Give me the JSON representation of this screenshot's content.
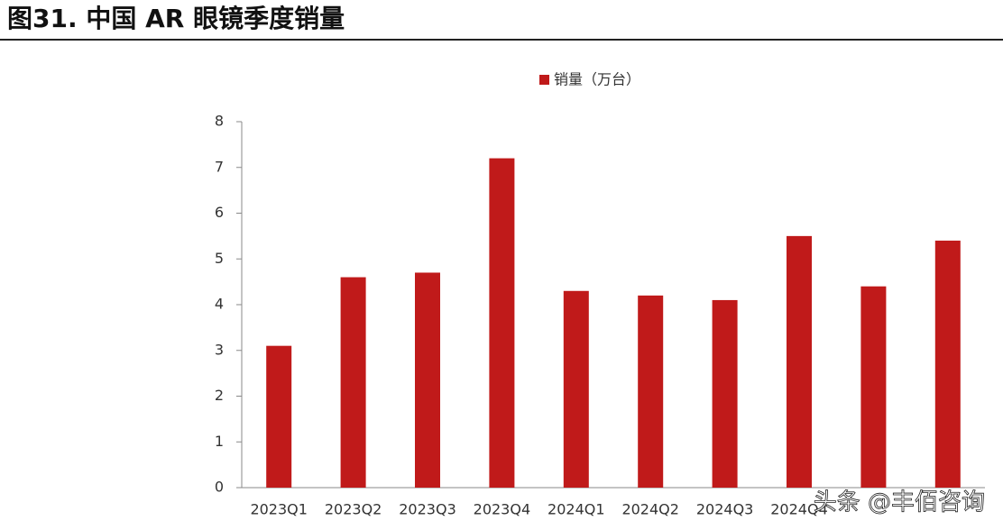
{
  "chart_data": {
    "type": "bar",
    "title": "图31. 中国 AR 眼镜季度销量",
    "categories": [
      "2023Q1",
      "2023Q2",
      "2023Q3",
      "2023Q4",
      "2024Q1",
      "2024Q2",
      "2024Q3",
      "2024Q4",
      null,
      null
    ],
    "series": [
      {
        "name": "销量（万台）",
        "color": "#c01a1a",
        "values": [
          3.1,
          4.6,
          4.7,
          7.2,
          4.3,
          4.2,
          4.1,
          5.5,
          4.4,
          5.4
        ]
      }
    ],
    "ylim": [
      0,
      8
    ],
    "yticks": [
      0,
      1,
      2,
      3,
      4,
      5,
      6,
      7,
      8
    ],
    "grid": false,
    "watermark": "头条 @丰佰咨询"
  }
}
